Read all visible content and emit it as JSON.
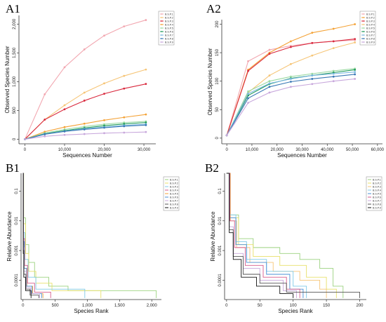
{
  "chart_data": [
    {
      "panel": "A1",
      "type": "line",
      "xlabel": "Sequences Number",
      "ylabel": "Observed Species Number",
      "xlim": [
        -1500,
        33000
      ],
      "ylim": [
        -80,
        2150
      ],
      "xticks": [
        0,
        10000,
        20000,
        30000
      ],
      "xtick_labels": [
        "0",
        "10,000",
        "20,000",
        "30,000"
      ],
      "yticks": [
        0,
        500,
        1000,
        1500,
        2000
      ],
      "ytick_labels": [
        "0",
        "500",
        "1,000",
        "1,500",
        "2,000"
      ],
      "legend": [
        "B.S.P.1",
        "B.S.P.2",
        "B.S.P.3",
        "B.S.P.4",
        "B.S.P.5",
        "B.S.P.6",
        "B.S.P.7",
        "B.S.P.8",
        "B.S.P.9"
      ],
      "legend_position": "top-right",
      "x": [
        0,
        5000,
        10000,
        15000,
        20000,
        25000,
        30500
      ],
      "series": [
        {
          "color": "#f2a7b0",
          "values": [
            0,
            780,
            1250,
            1560,
            1800,
            1960,
            2070
          ]
        },
        {
          "color": "#f6c577",
          "values": [
            0,
            340,
            590,
            810,
            970,
            1100,
            1210
          ]
        },
        {
          "color": "#d9283d",
          "values": [
            0,
            340,
            520,
            670,
            790,
            880,
            960
          ]
        },
        {
          "color": "#f4a236",
          "values": [
            0,
            130,
            210,
            270,
            330,
            380,
            430
          ]
        },
        {
          "color": "#9ad9a2",
          "values": [
            0,
            105,
            170,
            220,
            260,
            290,
            310
          ]
        },
        {
          "color": "#1e9a5a",
          "values": [
            0,
            95,
            150,
            195,
            235,
            265,
            290
          ]
        },
        {
          "color": "#7ab7e0",
          "values": [
            0,
            90,
            140,
            180,
            210,
            240,
            260
          ]
        },
        {
          "color": "#3a78b5",
          "values": [
            0,
            85,
            135,
            170,
            200,
            225,
            245
          ]
        },
        {
          "color": "#c8a8dc",
          "values": [
            0,
            50,
            75,
            90,
            105,
            115,
            125
          ]
        }
      ]
    },
    {
      "panel": "A2",
      "type": "line",
      "xlabel": "Sequences Number",
      "ylabel": "Observed Species Number",
      "xlim": [
        -2000,
        62000
      ],
      "ylim": [
        -10,
        208
      ],
      "xticks": [
        0,
        10000,
        20000,
        30000,
        40000,
        50000,
        60000
      ],
      "xtick_labels": [
        "0",
        "10,000",
        "20,000",
        "30,000",
        "40,000",
        "50,000",
        "60,000"
      ],
      "yticks": [
        0,
        50,
        100,
        150,
        200
      ],
      "ytick_labels": [
        "0",
        "50",
        "100",
        "150",
        "200"
      ],
      "legend": [
        "B.S.P.1",
        "B.S.P.2",
        "B.S.P.3",
        "B.S.P.4",
        "B.S.P.5",
        "B.S.P.6",
        "B.S.P.7",
        "B.S.P.8",
        "B.S.P.9"
      ],
      "legend_position": "top-right",
      "x": [
        0,
        8500,
        17000,
        25500,
        34000,
        42500,
        51000
      ],
      "series": [
        {
          "color": "#f2a7b0",
          "values": [
            5,
            135,
            155,
            162,
            167,
            170,
            172
          ]
        },
        {
          "color": "#f4a236",
          "values": [
            5,
            120,
            150,
            170,
            185,
            192,
            200
          ]
        },
        {
          "color": "#d9283d",
          "values": [
            5,
            118,
            148,
            160,
            167,
            170,
            174
          ]
        },
        {
          "color": "#f6c577",
          "values": [
            5,
            80,
            110,
            130,
            145,
            158,
            168
          ]
        },
        {
          "color": "#9ad9a2",
          "values": [
            5,
            82,
            100,
            108,
            113,
            118,
            122
          ]
        },
        {
          "color": "#1e9a5a",
          "values": [
            5,
            75,
            95,
            105,
            110,
            115,
            120
          ]
        },
        {
          "color": "#7ab7e0",
          "values": [
            5,
            78,
            96,
            104,
            110,
            113,
            116
          ]
        },
        {
          "color": "#3a78b5",
          "values": [
            5,
            70,
            90,
            99,
            104,
            108,
            112
          ]
        },
        {
          "color": "#c8a8dc",
          "values": [
            5,
            62,
            80,
            90,
            95,
            100,
            104
          ]
        }
      ]
    },
    {
      "panel": "B1",
      "type": "line",
      "xlabel": "Species Rank",
      "ylabel": "Relative Abundance",
      "xlim": [
        -30,
        2150
      ],
      "log_y": true,
      "ylim_log10": [
        -4.65,
        -0.4
      ],
      "xticks": [
        0,
        500,
        1000,
        1500,
        2000
      ],
      "xtick_labels": [
        "0",
        "500",
        "1,000",
        "1,500",
        "2,000"
      ],
      "yticks_log10": [
        -1,
        -2,
        -3,
        -4
      ],
      "ytick_labels": [
        "0.1",
        "0.01",
        "0.001",
        "0.0001"
      ],
      "legend": [
        "B.S.P.1",
        "B.S.P.2",
        "B.S.P.3",
        "B.S.P.4",
        "B.S.P.5",
        "B.S.P.6",
        "B.S.P.7",
        "B.S.P.8",
        "B.S.P.9"
      ],
      "legend_position": "top-right",
      "series": [
        {
          "color": "#9bd27f",
          "max_rank": 2070,
          "plateaus": [
            [
              0,
              -0.4
            ],
            [
              10,
              -1.9
            ],
            [
              40,
              -2.8
            ],
            [
              90,
              -3.4
            ],
            [
              180,
              -3.9
            ],
            [
              400,
              -4.2
            ],
            [
              700,
              -4.35
            ],
            [
              2070,
              -4.6
            ]
          ]
        },
        {
          "color": "#e8e06a",
          "max_rank": 1210,
          "plateaus": [
            [
              0,
              -0.4
            ],
            [
              10,
              -2.1
            ],
            [
              40,
              -3.1
            ],
            [
              90,
              -3.7
            ],
            [
              200,
              -4.1
            ],
            [
              450,
              -4.35
            ],
            [
              1210,
              -4.6
            ]
          ]
        },
        {
          "color": "#7fc9e8",
          "max_rank": 960,
          "plateaus": [
            [
              0,
              -0.4
            ],
            [
              8,
              -2.4
            ],
            [
              30,
              -3.3
            ],
            [
              80,
              -3.9
            ],
            [
              200,
              -4.3
            ],
            [
              960,
              -4.6
            ]
          ]
        },
        {
          "color": "#d65a8c",
          "max_rank": 430,
          "plateaus": [
            [
              0,
              -0.4
            ],
            [
              8,
              -2.6
            ],
            [
              25,
              -3.5
            ],
            [
              70,
              -4.1
            ],
            [
              180,
              -4.4
            ],
            [
              430,
              -4.6
            ]
          ]
        },
        {
          "color": "#f4a236",
          "max_rank": 310,
          "plateaus": [
            [
              0,
              -0.4
            ],
            [
              6,
              -2.8
            ],
            [
              20,
              -3.6
            ],
            [
              60,
              -4.2
            ],
            [
              150,
              -4.45
            ],
            [
              310,
              -4.6
            ]
          ]
        },
        {
          "color": "#4a8fd6",
          "max_rank": 290,
          "plateaus": [
            [
              0,
              -0.4
            ],
            [
              6,
              -2.7
            ],
            [
              18,
              -3.6
            ],
            [
              55,
              -4.2
            ],
            [
              140,
              -4.45
            ],
            [
              290,
              -4.6
            ]
          ]
        },
        {
          "color": "#c8a8dc",
          "max_rank": 260,
          "plateaus": [
            [
              0,
              -0.4
            ],
            [
              5,
              -2.9
            ],
            [
              15,
              -3.7
            ],
            [
              50,
              -4.25
            ],
            [
              120,
              -4.45
            ],
            [
              260,
              -4.6
            ]
          ]
        },
        {
          "color": "#555555",
          "max_rank": 245,
          "plateaus": [
            [
              0,
              -0.4
            ],
            [
              5,
              -3.0
            ],
            [
              14,
              -3.8
            ],
            [
              45,
              -4.3
            ],
            [
              110,
              -4.5
            ],
            [
              245,
              -4.6
            ]
          ]
        },
        {
          "color": "#111111",
          "max_rank": 125,
          "plateaus": [
            [
              0,
              -0.4
            ],
            [
              4,
              -3.1
            ],
            [
              12,
              -3.9
            ],
            [
              40,
              -4.35
            ],
            [
              125,
              -4.6
            ]
          ]
        }
      ]
    },
    {
      "panel": "B2",
      "type": "line",
      "xlabel": "Species Rank",
      "ylabel": "Relative Abundance",
      "xlim": [
        -3,
        210
      ],
      "log_y": true,
      "ylim_log10": [
        -4.65,
        -0.4
      ],
      "xticks": [
        0,
        50,
        100,
        150,
        200
      ],
      "xtick_labels": [
        "0",
        "50",
        "100",
        "150",
        "200"
      ],
      "yticks_log10": [
        -1,
        -2,
        -3,
        -4
      ],
      "ytick_labels": [
        "0.1",
        "0.01",
        "0.001",
        "0.0001"
      ],
      "legend": [
        "B.S.P.1",
        "B.S.P.2",
        "B.S.P.3",
        "B.S.P.4",
        "B.S.P.5",
        "B.S.P.6",
        "B.S.P.7",
        "B.S.P.8",
        "B.S.P.9"
      ],
      "legend_position": "top-right",
      "series": [
        {
          "color": "#9bd27f",
          "max_rank": 175,
          "plateaus": [
            [
              0,
              -0.4
            ],
            [
              6,
              -1.8
            ],
            [
              18,
              -2.6
            ],
            [
              40,
              -2.9
            ],
            [
              80,
              -3.1
            ],
            [
              110,
              -3.3
            ],
            [
              140,
              -3.6
            ],
            [
              160,
              -4.2
            ],
            [
              175,
              -4.6
            ]
          ]
        },
        {
          "color": "#e8e06a",
          "max_rank": 165,
          "plateaus": [
            [
              0,
              -0.4
            ],
            [
              6,
              -1.9
            ],
            [
              18,
              -2.8
            ],
            [
              40,
              -3.2
            ],
            [
              80,
              -3.5
            ],
            [
              120,
              -3.9
            ],
            [
              150,
              -4.3
            ],
            [
              165,
              -4.6
            ]
          ]
        },
        {
          "color": "#f6c577",
          "max_rank": 150,
          "plateaus": [
            [
              0,
              -0.4
            ],
            [
              6,
              -2.0
            ],
            [
              15,
              -2.9
            ],
            [
              35,
              -3.4
            ],
            [
              70,
              -3.7
            ],
            [
              110,
              -4.0
            ],
            [
              140,
              -4.3
            ],
            [
              150,
              -4.6
            ]
          ]
        },
        {
          "color": "#7fc9e8",
          "max_rank": 120,
          "plateaus": [
            [
              0,
              -0.4
            ],
            [
              5,
              -1.8
            ],
            [
              14,
              -2.7
            ],
            [
              30,
              -3.3
            ],
            [
              60,
              -3.7
            ],
            [
              100,
              -4.2
            ],
            [
              120,
              -4.6
            ]
          ]
        },
        {
          "color": "#4a8fd6",
          "max_rank": 115,
          "plateaus": [
            [
              0,
              -0.4
            ],
            [
              5,
              -1.9
            ],
            [
              14,
              -2.8
            ],
            [
              30,
              -3.4
            ],
            [
              60,
              -3.8
            ],
            [
              95,
              -4.3
            ],
            [
              115,
              -4.6
            ]
          ]
        },
        {
          "color": "#d65a8c",
          "max_rank": 110,
          "plateaus": [
            [
              0,
              -0.4
            ],
            [
              5,
              -2.0
            ],
            [
              12,
              -2.9
            ],
            [
              28,
              -3.5
            ],
            [
              55,
              -3.9
            ],
            [
              90,
              -4.3
            ],
            [
              110,
              -4.6
            ]
          ]
        },
        {
          "color": "#c8a8dc",
          "max_rank": 105,
          "plateaus": [
            [
              0,
              -0.4
            ],
            [
              4,
              -2.2
            ],
            [
              10,
              -3.1
            ],
            [
              25,
              -3.6
            ],
            [
              50,
              -4.0
            ],
            [
              85,
              -4.35
            ],
            [
              105,
              -4.6
            ]
          ]
        },
        {
          "color": "#555555",
          "max_rank": 200,
          "plateaus": [
            [
              0,
              -0.4
            ],
            [
              4,
              -2.3
            ],
            [
              10,
              -3.2
            ],
            [
              25,
              -3.8
            ],
            [
              50,
              -4.1
            ],
            [
              90,
              -4.4
            ],
            [
              200,
              -4.6
            ]
          ]
        },
        {
          "color": "#111111",
          "max_rank": 100,
          "plateaus": [
            [
              0,
              -0.4
            ],
            [
              4,
              -2.4
            ],
            [
              10,
              -3.3
            ],
            [
              22,
              -3.9
            ],
            [
              45,
              -4.2
            ],
            [
              80,
              -4.45
            ],
            [
              100,
              -4.6
            ]
          ]
        }
      ]
    }
  ]
}
